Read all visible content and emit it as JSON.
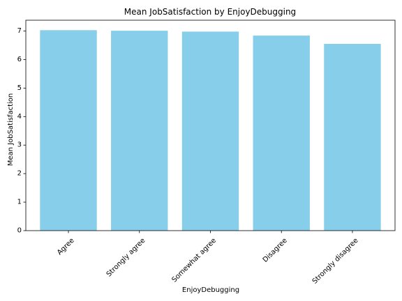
{
  "chart_data": {
    "type": "bar",
    "title": "Mean JobSatisfaction by EnjoyDebugging",
    "xlabel": "EnjoyDebugging",
    "ylabel": "Mean JobSatisfaction",
    "categories": [
      "Agree",
      "Strongly agree",
      "Somewhat agree",
      "Disagree",
      "Strongly disagree"
    ],
    "values": [
      7.03,
      7.01,
      6.98,
      6.84,
      6.55
    ],
    "ylim": [
      0,
      7.38
    ],
    "yticks": [
      0,
      1,
      2,
      3,
      4,
      5,
      6,
      7
    ],
    "bar_color": "#87CEEB",
    "grid": false,
    "legend": "none"
  }
}
